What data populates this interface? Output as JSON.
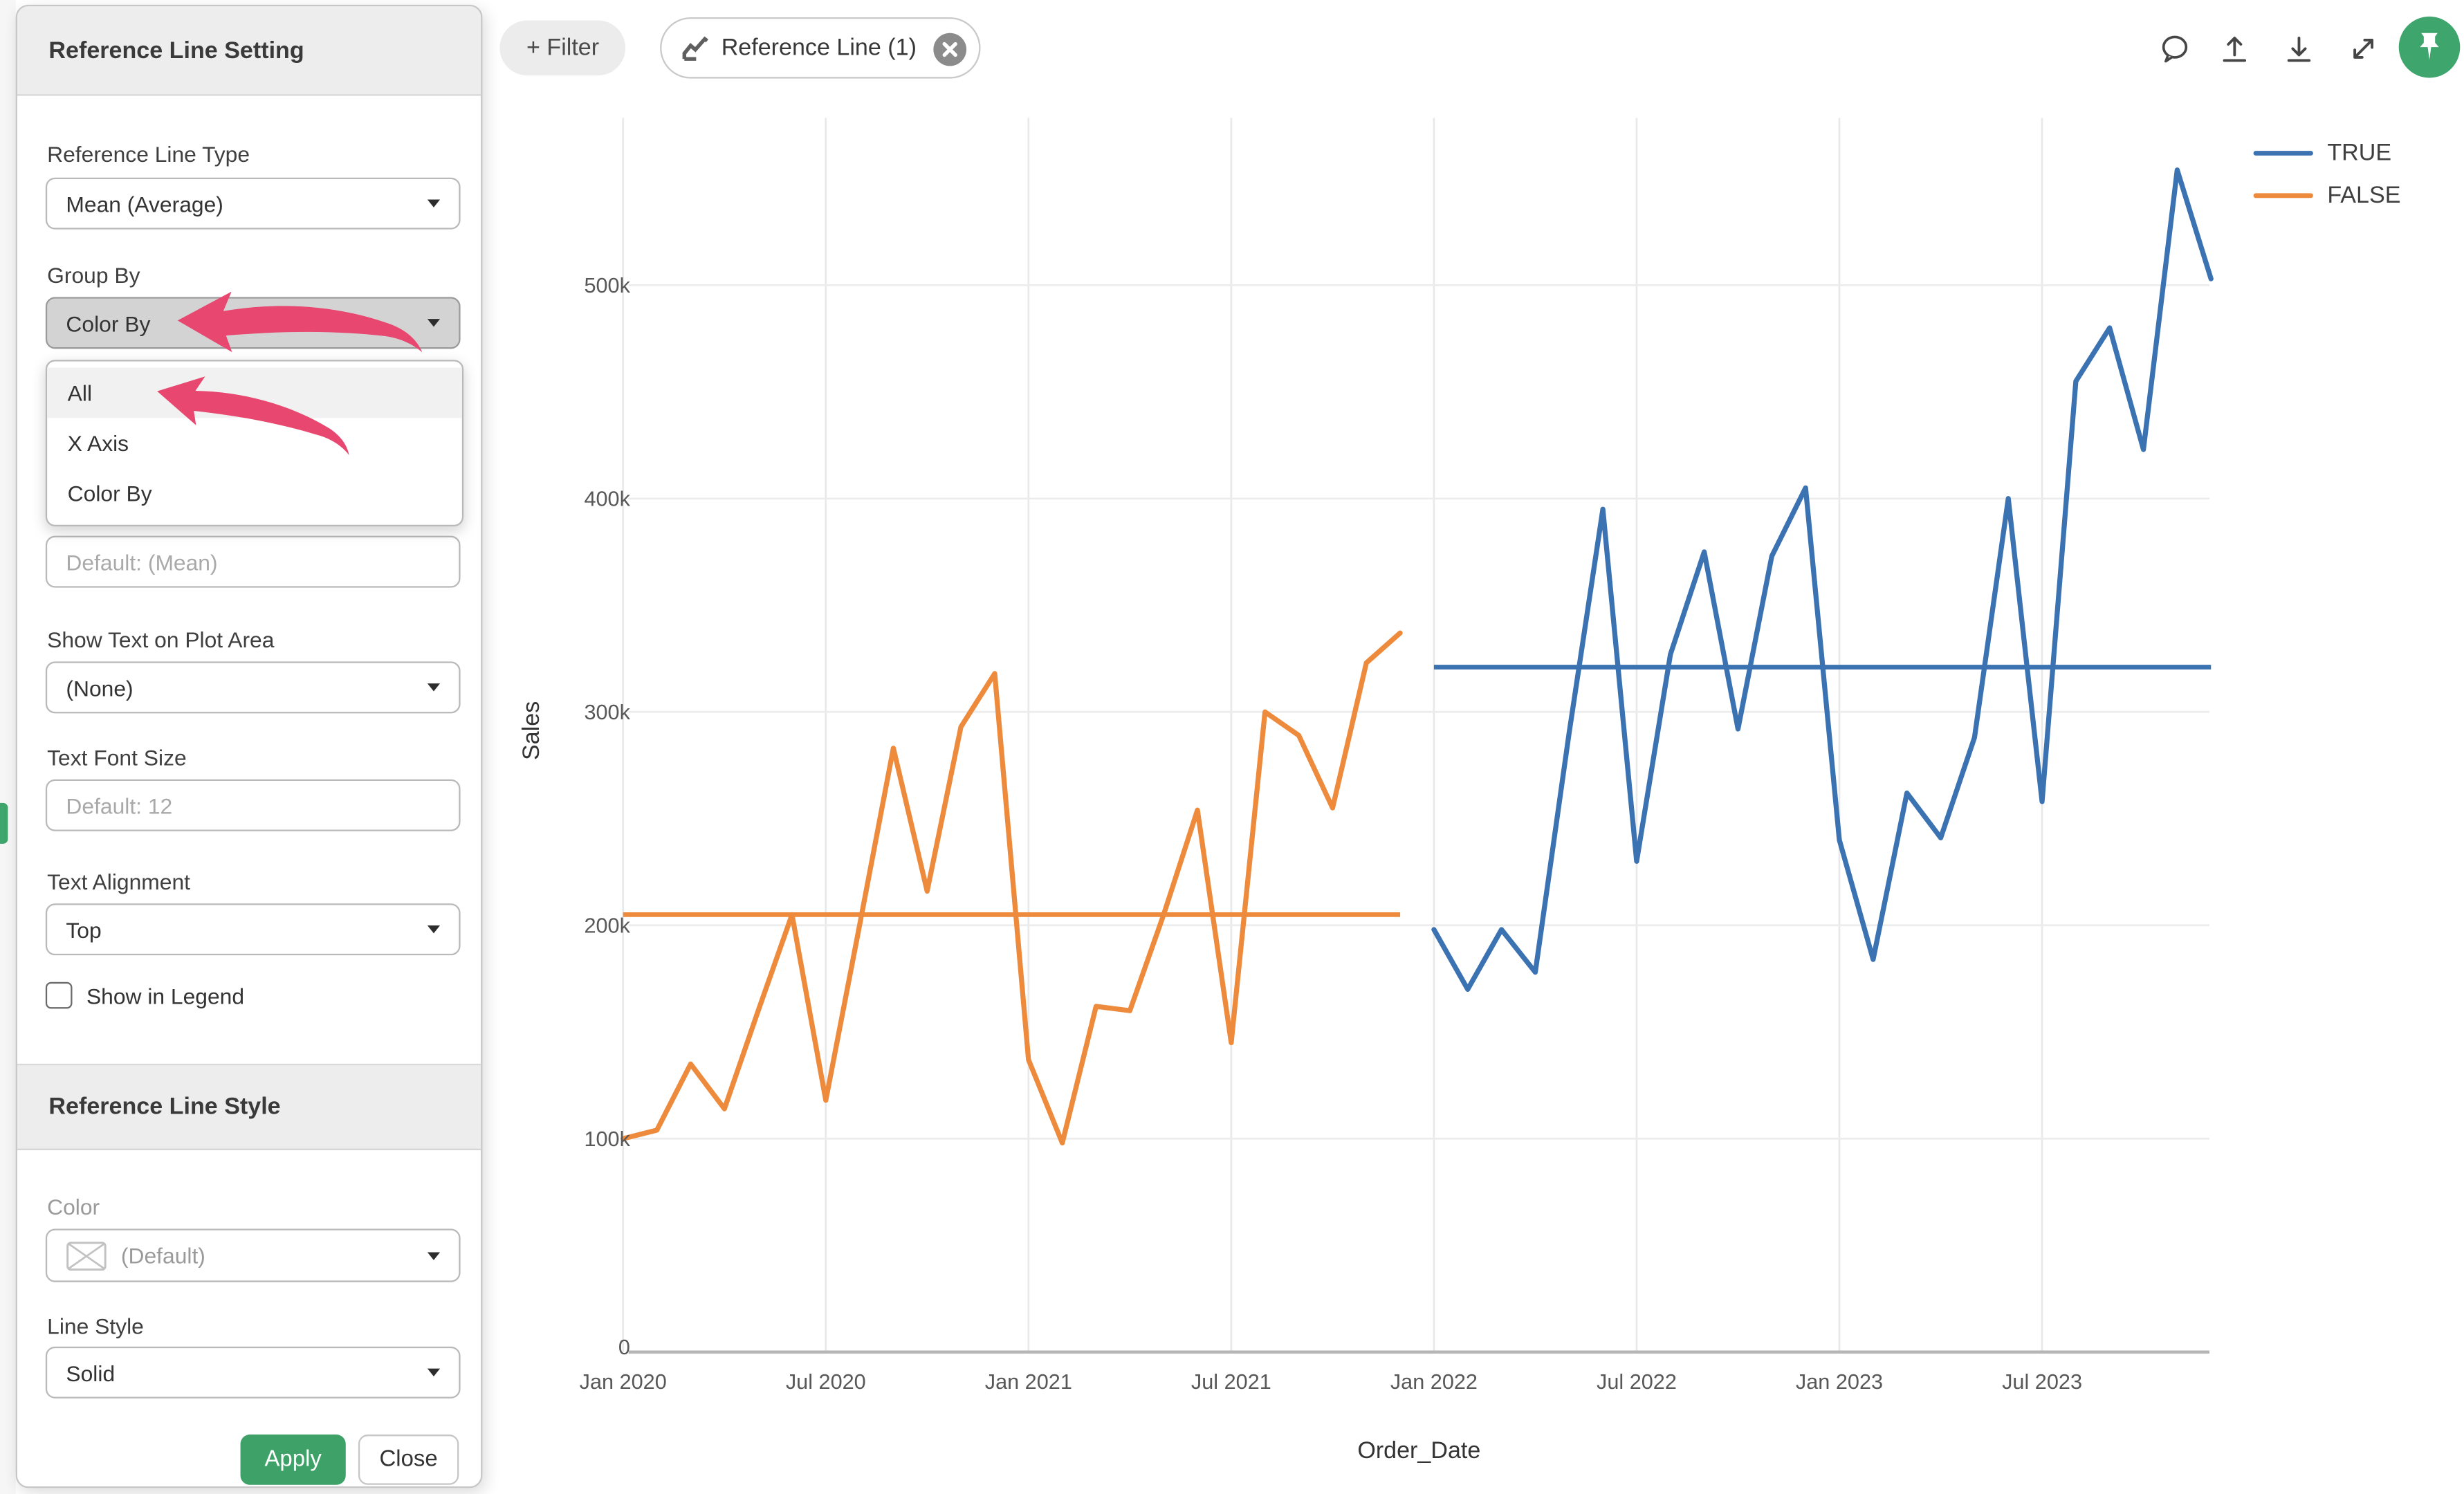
{
  "panel": {
    "title": "Reference Line Setting",
    "type_label": "Reference Line Type",
    "type_value": "Mean (Average)",
    "group_label": "Group By",
    "group_value": "Color By",
    "group_menu": {
      "items": [
        "All",
        "X Axis",
        "Color By"
      ],
      "highlighted": "All"
    },
    "value_placeholder": "Default: (Mean)",
    "show_text_label": "Show Text on Plot Area",
    "show_text_value": "(None)",
    "font_size_label": "Text Font Size",
    "font_size_placeholder": "Default: 12",
    "alignment_label": "Text Alignment",
    "alignment_value": "Top",
    "legend_checkbox_label": "Show in Legend",
    "legend_checkbox_checked": false,
    "style_title": "Reference Line Style",
    "color_label": "Color",
    "color_value": "(Default)",
    "line_style_label": "Line Style",
    "line_style_value": "Solid",
    "apply_label": "Apply",
    "close_label": "Close"
  },
  "toolbar": {
    "filter_label": "+ Filter",
    "chip_label": "Reference Line (1)",
    "icons": [
      "comment",
      "upload",
      "download",
      "expand",
      "pin"
    ],
    "pin_color": "#3EA56C"
  },
  "annotations": {
    "arrow_color": "#E8476F"
  },
  "chart_data": {
    "type": "line",
    "title": "",
    "xlabel": "Order_Date",
    "ylabel": "Sales",
    "x_unit": "month",
    "x_start": "Jan 2020",
    "x_months": 48,
    "xticks": [
      "Jan 2020",
      "Jul 2020",
      "Jan 2021",
      "Jul 2021",
      "Jan 2022",
      "Jul 2022",
      "Jan 2023",
      "Jul 2023"
    ],
    "xtick_indices": [
      0,
      6,
      12,
      18,
      24,
      30,
      36,
      42
    ],
    "yticks": [
      "0",
      "100k",
      "200k",
      "300k",
      "400k",
      "500k"
    ],
    "ytick_values_k": [
      0,
      100,
      200,
      300,
      400,
      500
    ],
    "ylim_k": [
      0,
      575
    ],
    "grid": true,
    "legend": [
      "TRUE",
      "FALSE"
    ],
    "legend_position": "top-right",
    "series": [
      {
        "name": "TRUE",
        "color": "#3B72B1",
        "start_index": 24,
        "values_k": [
          198,
          170,
          198,
          178,
          290,
          395,
          230,
          327,
          375,
          292,
          373,
          405,
          240,
          184,
          262,
          241,
          288,
          400,
          258,
          455,
          480,
          423,
          554,
          503
        ]
      },
      {
        "name": "FALSE",
        "color": "#EE8A3B",
        "start_index": 0,
        "values_k": [
          100,
          104,
          135,
          114,
          160,
          205,
          118,
          200,
          283,
          216,
          293,
          318,
          137,
          98,
          162,
          160,
          205,
          254,
          145,
          300,
          289,
          255,
          323,
          337
        ]
      }
    ],
    "reference_lines": [
      {
        "name": "TRUE mean",
        "color": "#3B72B1",
        "value_k": 321,
        "from_index": 24,
        "to_index": 47
      },
      {
        "name": "FALSE mean",
        "color": "#EE8A3B",
        "value_k": 205,
        "from_index": 0,
        "to_index": 23
      }
    ]
  }
}
